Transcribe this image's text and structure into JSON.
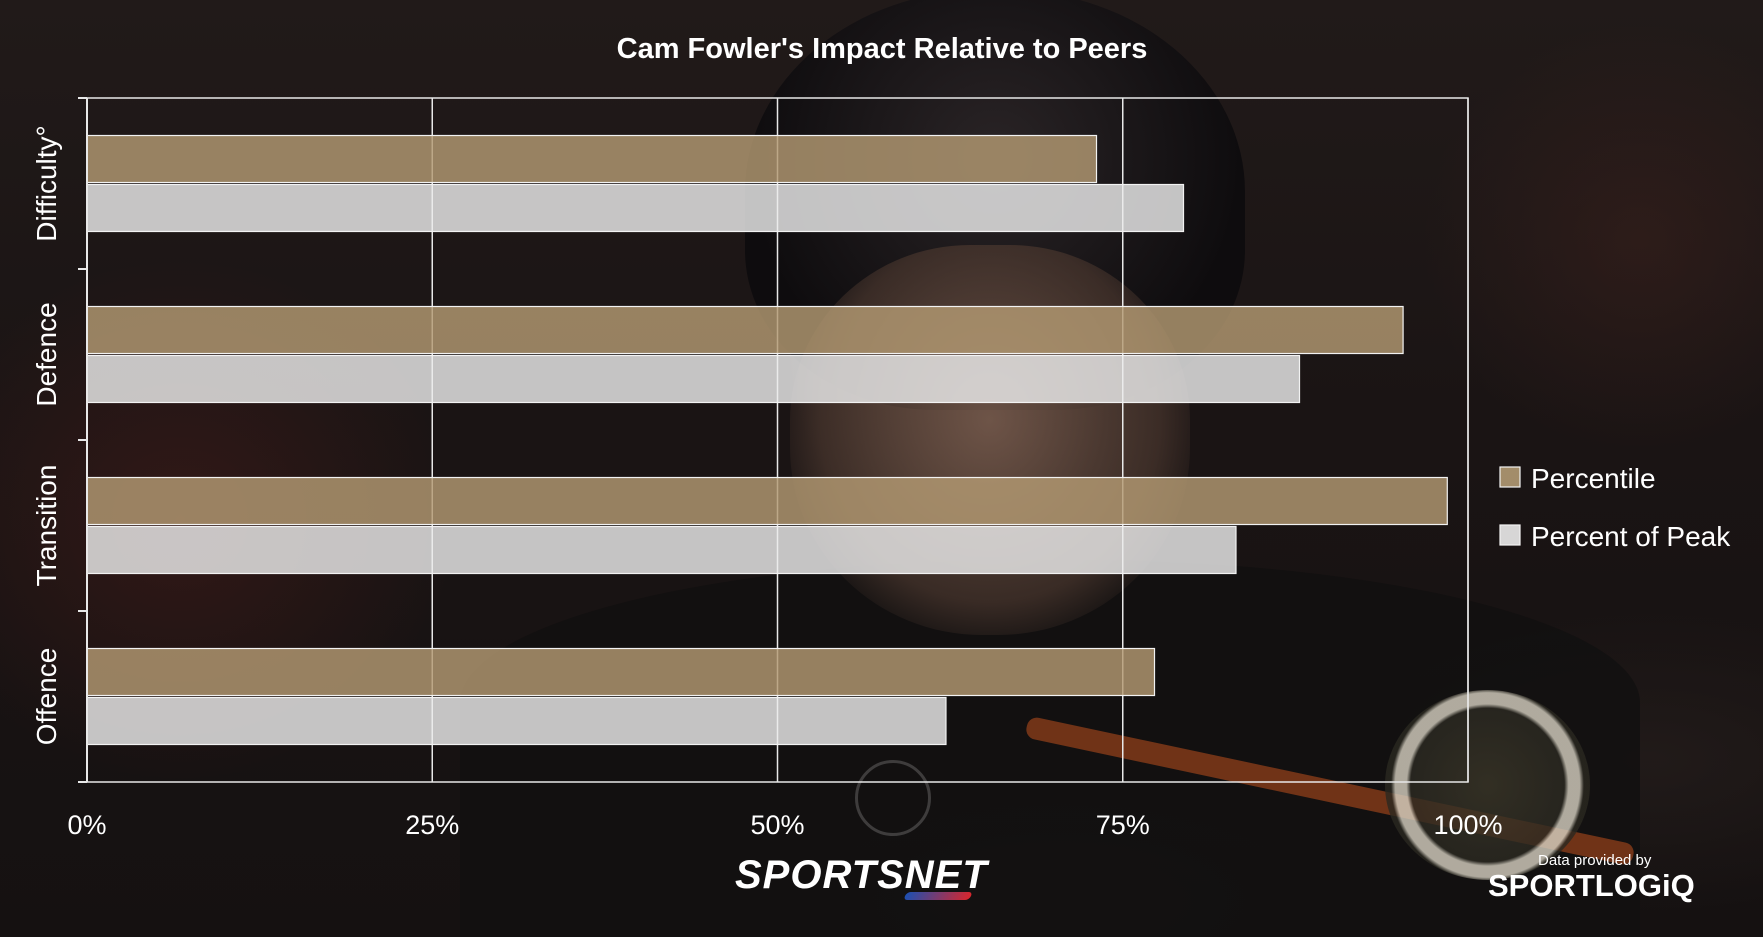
{
  "chart_data": {
    "type": "bar",
    "orientation": "horizontal",
    "title": "Cam Fowler's Impact Relative to Peers",
    "categories": [
      "Offence",
      "Transition",
      "Defence",
      "Difficulty°"
    ],
    "series": [
      {
        "name": "Percentile",
        "values": [
          77.3,
          98.5,
          95.3,
          73.1
        ]
      },
      {
        "name": "Percent of Peak",
        "values": [
          62.2,
          83.2,
          87.8,
          79.4
        ]
      }
    ],
    "xlim": [
      0,
      100
    ],
    "x_ticks": [
      "0%",
      "25%",
      "50%",
      "75%",
      "100%"
    ],
    "x_tick_values": [
      0,
      25,
      50,
      75,
      100
    ],
    "grid": true,
    "legend_position": "right",
    "colors": {
      "Percentile": "#b39a73",
      "Percent of Peak": "#ececec"
    },
    "bar_opacity": 0.82
  },
  "branding": {
    "sportsnet": "SPORTSNET",
    "provider_caption": "Data provided by",
    "sportlogiq": "SPORTLOGiQ"
  }
}
